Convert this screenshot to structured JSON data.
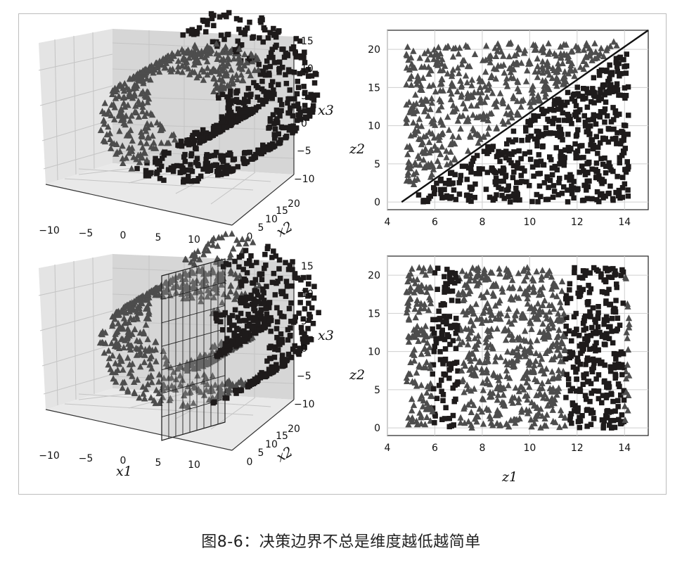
{
  "caption": "图8-6：决策边界不总是维度越低越简单",
  "colors": {
    "class_square": "#1e1b1b",
    "class_triangle": "#4d4d4d",
    "pane": "#dadada",
    "grid": "#c4c4c4"
  },
  "chart_data": [
    {
      "type": "scatter",
      "projection": "3d",
      "panel": "top-left",
      "xlabel": "",
      "ylabel": "x2",
      "zlabel": "x3",
      "x_ticks": [
        "−10",
        "−5",
        "0",
        "5",
        "10"
      ],
      "y_ticks": [
        "0",
        "5",
        "10",
        "15",
        "20"
      ],
      "z_ticks": [
        "15",
        "10",
        "5",
        "0",
        "−5",
        "−10"
      ],
      "xlim": [
        -12,
        14
      ],
      "ylim": [
        0,
        21
      ],
      "zlim": [
        -12,
        15
      ],
      "dataset": "swiss roll",
      "series": [
        {
          "marker": "square",
          "description_of_region": "outer/inner roll layers"
        },
        {
          "marker": "triangle",
          "description_of_region": "middle roll layer"
        }
      ]
    },
    {
      "type": "scatter",
      "panel": "top-right",
      "xlabel": "",
      "ylabel": "z2",
      "x_ticks": [
        "4",
        "6",
        "8",
        "10",
        "12",
        "14"
      ],
      "y_ticks": [
        "0",
        "5",
        "10",
        "15",
        "20"
      ],
      "xlim": [
        4,
        15
      ],
      "ylim": [
        -1,
        22.5
      ],
      "decision_boundary": {
        "from": [
          4.6,
          0
        ],
        "to": [
          15,
          22.5
        ]
      },
      "series": [
        {
          "marker": "triangle",
          "region": "above the line"
        },
        {
          "marker": "square",
          "region": "below the line"
        }
      ]
    },
    {
      "type": "scatter",
      "projection": "3d",
      "panel": "bottom-left",
      "xlabel": "x1",
      "ylabel": "x2",
      "zlabel": "x3",
      "x_ticks": [
        "−10",
        "−5",
        "0",
        "5",
        "10"
      ],
      "y_ticks": [
        "0",
        "5",
        "10",
        "15",
        "20"
      ],
      "z_ticks": [
        "15",
        "10",
        "5",
        "0",
        "−5",
        "−10"
      ],
      "xlim": [
        -12,
        14
      ],
      "ylim": [
        0,
        21
      ],
      "zlim": [
        -12,
        15
      ],
      "decision_boundary": {
        "plane": "x1 = 5"
      },
      "series": [
        {
          "marker": "triangle",
          "region": "x1 < 5"
        },
        {
          "marker": "square",
          "region": "x1 > 5"
        }
      ]
    },
    {
      "type": "scatter",
      "panel": "bottom-right",
      "xlabel": "z1",
      "ylabel": "z2",
      "x_ticks": [
        "4",
        "6",
        "8",
        "10",
        "12",
        "14"
      ],
      "y_ticks": [
        "0",
        "5",
        "10",
        "15",
        "20"
      ],
      "xlim": [
        4,
        15
      ],
      "ylim": [
        -1,
        22.5
      ],
      "series": [
        {
          "marker": "square",
          "bands": [
            [
              5.9,
              7.0
            ],
            [
              11.5,
              14.0
            ]
          ]
        },
        {
          "marker": "triangle",
          "bands": [
            [
              4.8,
              5.9
            ],
            [
              7.0,
              11.5
            ],
            [
              14.0,
              14.2
            ]
          ]
        }
      ]
    }
  ]
}
